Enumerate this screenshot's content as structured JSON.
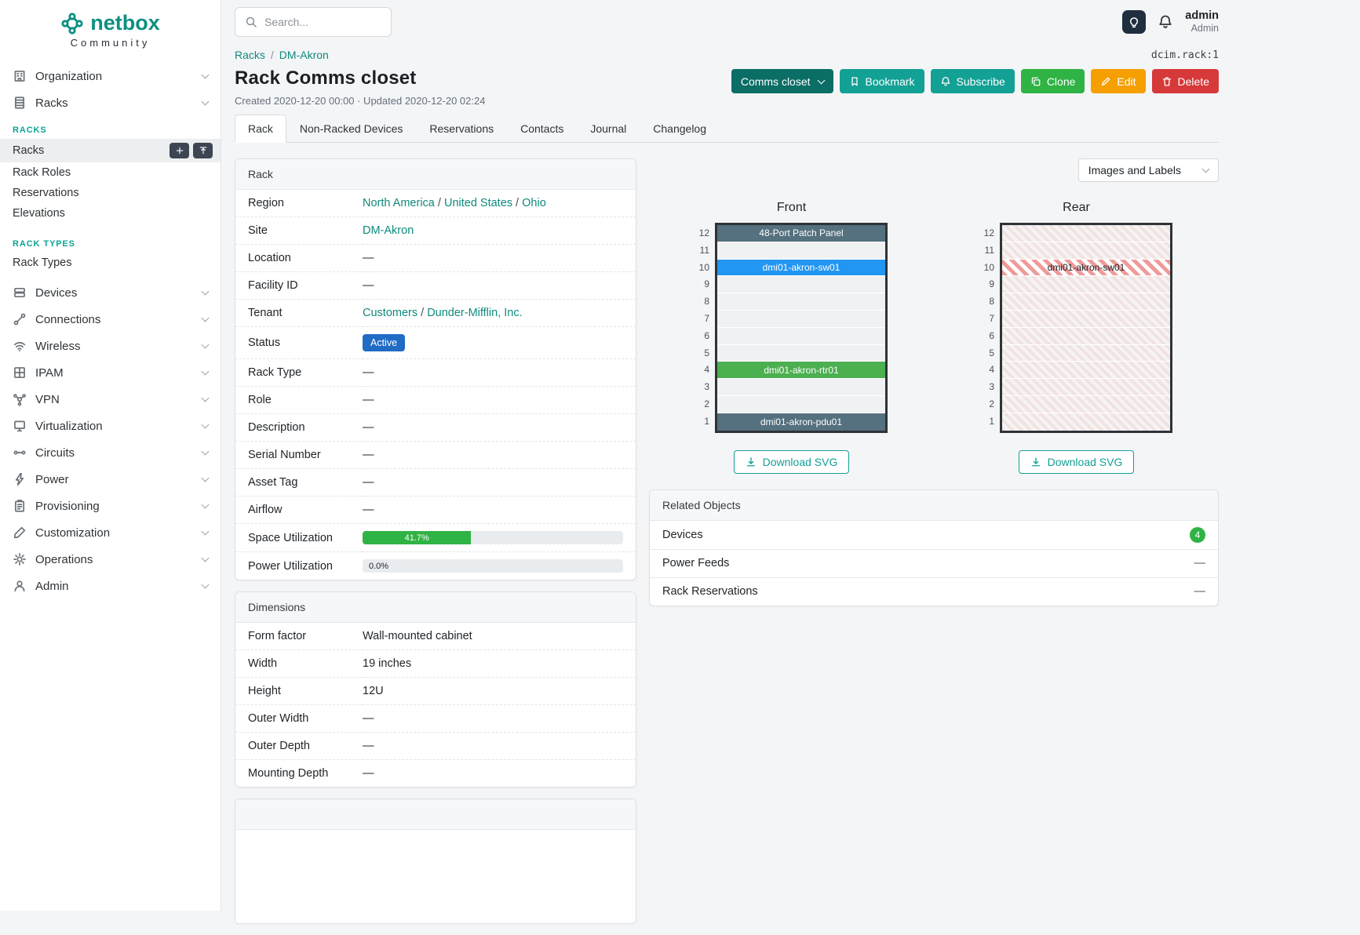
{
  "colors": {
    "brand_teal": "#0b9081",
    "link_teal": "#0e8a7d",
    "sidebar_section": "#0ca495",
    "primary_button": "#13a095",
    "primary_dark_button": "#0b6e66",
    "success": "#2fb344",
    "warning": "#f59f00",
    "danger": "#d63939",
    "status_blue": "#206bc4"
  },
  "brand": {
    "name": "netbox",
    "tagline": "Community"
  },
  "topbar": {
    "search_placeholder": "Search...",
    "user_name": "admin",
    "user_role": "Admin"
  },
  "sidebar": {
    "items": [
      {
        "label": "Organization",
        "icon": "organization-icon"
      },
      {
        "label": "Racks",
        "icon": "racks-icon",
        "expanded": true,
        "groups": [
          {
            "title": "RACKS",
            "links": [
              {
                "label": "Racks",
                "active": true,
                "buttons": [
                  "add",
                  "import"
                ]
              },
              {
                "label": "Rack Roles"
              },
              {
                "label": "Reservations"
              },
              {
                "label": "Elevations"
              }
            ]
          },
          {
            "title": "RACK TYPES",
            "links": [
              {
                "label": "Rack Types"
              }
            ]
          }
        ]
      },
      {
        "label": "Devices",
        "icon": "devices-icon"
      },
      {
        "label": "Connections",
        "icon": "connections-icon"
      },
      {
        "label": "Wireless",
        "icon": "wireless-icon"
      },
      {
        "label": "IPAM",
        "icon": "ipam-icon"
      },
      {
        "label": "VPN",
        "icon": "vpn-icon"
      },
      {
        "label": "Virtualization",
        "icon": "virtualization-icon"
      },
      {
        "label": "Circuits",
        "icon": "circuits-icon"
      },
      {
        "label": "Power",
        "icon": "power-icon"
      },
      {
        "label": "Provisioning",
        "icon": "provisioning-icon"
      },
      {
        "label": "Customization",
        "icon": "customization-icon"
      },
      {
        "label": "Operations",
        "icon": "operations-icon"
      },
      {
        "label": "Admin",
        "icon": "admin-icon"
      }
    ]
  },
  "page": {
    "breadcrumb": [
      "Racks",
      "DM-Akron"
    ],
    "object_id": "dcim.rack:1",
    "title": "Rack Comms closet",
    "meta": "Created 2020-12-20 00:00 · Updated 2020-12-20 02:24",
    "actions": [
      {
        "label": "Comms closet",
        "color": "#0b6e66",
        "dropdown": true
      },
      {
        "label": "Bookmark",
        "color": "#13a095",
        "icon": "bookmark"
      },
      {
        "label": "Subscribe",
        "color": "#13a095",
        "icon": "bell"
      },
      {
        "label": "Clone",
        "color": "#2fb344",
        "icon": "copy"
      },
      {
        "label": "Edit",
        "color": "#f59f00",
        "icon": "pencil"
      },
      {
        "label": "Delete",
        "color": "#d63939",
        "icon": "trash"
      }
    ]
  },
  "tabs": [
    {
      "label": "Rack",
      "active": true
    },
    {
      "label": "Non-Racked Devices"
    },
    {
      "label": "Reservations"
    },
    {
      "label": "Contacts"
    },
    {
      "label": "Journal"
    },
    {
      "label": "Changelog"
    }
  ],
  "rack_panel": {
    "title": "Rack",
    "fields": [
      {
        "label": "Region",
        "links": [
          "North America",
          "United States",
          "Ohio"
        ]
      },
      {
        "label": "Site",
        "links": [
          "DM-Akron"
        ]
      },
      {
        "label": "Location",
        "value": "—"
      },
      {
        "label": "Facility ID",
        "value": "—"
      },
      {
        "label": "Tenant",
        "links": [
          "Customers",
          "Dunder-Mifflin, Inc."
        ]
      },
      {
        "label": "Status",
        "badge": {
          "text": "Active",
          "color": "#206bc4"
        }
      },
      {
        "label": "Rack Type",
        "value": "—"
      },
      {
        "label": "Role",
        "value": "—"
      },
      {
        "label": "Description",
        "value": "—"
      },
      {
        "label": "Serial Number",
        "value": "—"
      },
      {
        "label": "Asset Tag",
        "value": "—"
      },
      {
        "label": "Airflow",
        "value": "—"
      },
      {
        "label": "Space Utilization",
        "progress": {
          "percent": 41.7,
          "label": "41.7%",
          "color": "#2fb344"
        }
      },
      {
        "label": "Power Utilization",
        "progress": {
          "percent": 0,
          "label": "0.0%",
          "color": "#2fb344"
        }
      }
    ]
  },
  "dimensions_panel": {
    "title": "Dimensions",
    "fields": [
      {
        "label": "Form factor",
        "value": "Wall-mounted cabinet"
      },
      {
        "label": "Width",
        "value": "19 inches"
      },
      {
        "label": "Height",
        "value": "12U"
      },
      {
        "label": "Outer Width",
        "value": "—"
      },
      {
        "label": "Outer Depth",
        "value": "—"
      },
      {
        "label": "Mounting Depth",
        "value": "—"
      }
    ]
  },
  "elevations": {
    "toolbar_select": "Images and Labels",
    "download_label": "Download SVG",
    "front": {
      "title": "Front",
      "units": [
        {
          "u": 12,
          "label": "48-Port Patch Panel",
          "color": "#55707e",
          "text": "#ffffff"
        },
        {
          "u": 11
        },
        {
          "u": 10,
          "label": "dmi01-akron-sw01",
          "color": "#2196f3",
          "text": "#ffffff"
        },
        {
          "u": 9
        },
        {
          "u": 8
        },
        {
          "u": 7
        },
        {
          "u": 6
        },
        {
          "u": 5
        },
        {
          "u": 4,
          "label": "dmi01-akron-rtr01",
          "color": "#4caf50",
          "text": "#ffffff"
        },
        {
          "u": 3
        },
        {
          "u": 2
        },
        {
          "u": 1,
          "label": "dmi01-akron-pdu01",
          "color": "#55707e",
          "text": "#ffffff"
        }
      ]
    },
    "rear": {
      "title": "Rear",
      "units": [
        {
          "u": 12,
          "pattern": "faint"
        },
        {
          "u": 11,
          "pattern": "faint"
        },
        {
          "u": 10,
          "label": "dmi01-akron-sw01",
          "pattern": "striped",
          "text": "#212529"
        },
        {
          "u": 9,
          "pattern": "faint"
        },
        {
          "u": 8,
          "pattern": "faint"
        },
        {
          "u": 7,
          "pattern": "faint"
        },
        {
          "u": 6,
          "pattern": "faint"
        },
        {
          "u": 5,
          "pattern": "faint"
        },
        {
          "u": 4,
          "pattern": "faint"
        },
        {
          "u": 3,
          "pattern": "faint"
        },
        {
          "u": 2,
          "pattern": "faint"
        },
        {
          "u": 1,
          "pattern": "faint"
        }
      ]
    }
  },
  "related_objects": {
    "title": "Related Objects",
    "rows": [
      {
        "label": "Devices",
        "badge": "4"
      },
      {
        "label": "Power Feeds",
        "value": "—"
      },
      {
        "label": "Rack Reservations",
        "value": "—"
      }
    ]
  }
}
